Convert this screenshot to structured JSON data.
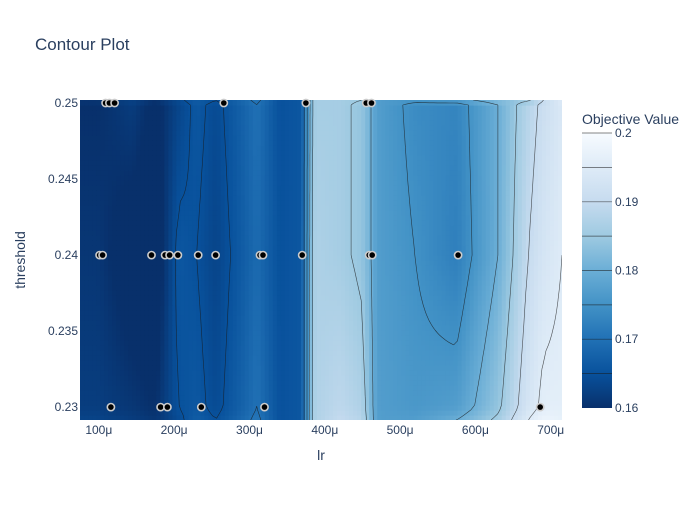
{
  "chart_data": {
    "type": "contour",
    "title": "Contour Plot",
    "xlabel": "lr",
    "ylabel": "threshold",
    "xlim": [
      7.5e-05,
      0.000715
    ],
    "ylim": [
      0.22915,
      0.2502
    ],
    "x_ticks": [
      {
        "value": 0.0001,
        "label": "100μ"
      },
      {
        "value": 0.0002,
        "label": "200μ"
      },
      {
        "value": 0.0003,
        "label": "300μ"
      },
      {
        "value": 0.0004,
        "label": "400μ"
      },
      {
        "value": 0.0005,
        "label": "500μ"
      },
      {
        "value": 0.0006,
        "label": "600μ"
      },
      {
        "value": 0.0007,
        "label": "700μ"
      }
    ],
    "y_ticks": [
      {
        "value": 0.23,
        "label": "0.23"
      },
      {
        "value": 0.235,
        "label": "0.235"
      },
      {
        "value": 0.24,
        "label": "0.24"
      },
      {
        "value": 0.245,
        "label": "0.245"
      },
      {
        "value": 0.25,
        "label": "0.25"
      }
    ],
    "colorbar": {
      "title": "Objective Value",
      "range": [
        0.16,
        0.2
      ],
      "ticks": [
        {
          "value": 0.16,
          "label": "0.16"
        },
        {
          "value": 0.17,
          "label": "0.17"
        },
        {
          "value": 0.18,
          "label": "0.18"
        },
        {
          "value": 0.19,
          "label": "0.19"
        },
        {
          "value": 0.2,
          "label": "0.2"
        }
      ],
      "contour_levels": [
        0.165,
        0.17,
        0.175,
        0.18,
        0.185,
        0.19,
        0.195,
        0.2
      ],
      "colorscale": [
        "#08306b",
        "#08519c",
        "#2171b5",
        "#4292c6",
        "#6baed6",
        "#9ecae1",
        "#c6dbef",
        "#deebf7",
        "#f7fbff"
      ]
    },
    "columns": [
      {
        "x": 0.0001,
        "values": [
          0.163,
          0.162,
          0.161,
          0.16,
          0.161
        ]
      },
      {
        "x": 0.000145,
        "values": [
          0.162,
          0.161,
          0.158,
          0.162,
          0.163
        ]
      },
      {
        "x": 0.000175,
        "values": [
          0.161,
          0.16,
          0.157,
          0.159,
          0.161
        ]
      },
      {
        "x": 0.000205,
        "values": [
          0.164,
          0.165,
          0.166,
          0.163,
          0.164
        ]
      },
      {
        "x": 0.00023,
        "values": [
          0.167,
          0.166,
          0.165,
          0.166,
          0.167
        ]
      },
      {
        "x": 0.000255,
        "values": [
          0.165,
          0.164,
          0.163,
          0.164,
          0.165
        ]
      },
      {
        "x": 0.000285,
        "values": [
          0.168,
          0.167,
          0.166,
          0.167,
          0.168
        ]
      },
      {
        "x": 0.00031,
        "values": [
          0.171,
          0.17,
          0.169,
          0.17,
          0.171
        ]
      },
      {
        "x": 0.00034,
        "values": [
          0.165,
          0.165,
          0.165,
          0.165,
          0.165
        ]
      },
      {
        "x": 0.00037,
        "values": [
          0.166,
          0.166,
          0.166,
          0.166,
          0.166
        ]
      },
      {
        "x": 0.000385,
        "values": [
          0.187,
          0.187,
          0.187,
          0.186,
          0.186
        ]
      },
      {
        "x": 0.00042,
        "values": [
          0.19,
          0.189,
          0.186,
          0.186,
          0.186
        ]
      },
      {
        "x": 0.00045,
        "values": [
          0.188,
          0.187,
          0.184,
          0.184,
          0.185
        ]
      },
      {
        "x": 0.00047,
        "values": [
          0.177,
          0.177,
          0.177,
          0.177,
          0.177
        ]
      },
      {
        "x": 0.00052,
        "values": [
          0.177,
          0.176,
          0.175,
          0.174,
          0.176
        ]
      },
      {
        "x": 0.000575,
        "values": [
          0.18,
          0.177,
          0.172,
          0.173,
          0.178
        ]
      },
      {
        "x": 0.00063,
        "values": [
          0.186,
          0.184,
          0.18,
          0.18,
          0.183
        ]
      },
      {
        "x": 0.00067,
        "values": [
          0.195,
          0.193,
          0.19,
          0.188,
          0.184
        ]
      },
      {
        "x": 0.00069,
        "values": [
          0.198,
          0.196,
          0.193,
          0.191,
          0.19
        ]
      },
      {
        "x": 0.000715,
        "values": [
          0.197,
          0.196,
          0.195,
          0.194,
          0.195
        ]
      }
    ],
    "rows": [
      0.22915,
      0.23,
      0.24,
      0.2501,
      0.2502
    ],
    "trials": [
      [
        0.000109,
        0.25
      ],
      [
        0.000114,
        0.25
      ],
      [
        0.000121,
        0.25
      ],
      [
        0.000266,
        0.25
      ],
      [
        0.000375,
        0.25
      ],
      [
        0.000455,
        0.25
      ],
      [
        0.000462,
        0.25
      ],
      [
        0.000101,
        0.24
      ],
      [
        0.000105,
        0.24
      ],
      [
        0.00017,
        0.24
      ],
      [
        0.000188,
        0.24
      ],
      [
        0.000194,
        0.24
      ],
      [
        0.000205,
        0.24
      ],
      [
        0.000232,
        0.24
      ],
      [
        0.000255,
        0.24
      ],
      [
        0.000314,
        0.24
      ],
      [
        0.000318,
        0.24
      ],
      [
        0.00037,
        0.24
      ],
      [
        0.000459,
        0.24
      ],
      [
        0.000463,
        0.24
      ],
      [
        0.000577,
        0.24
      ],
      [
        0.000116,
        0.23
      ],
      [
        0.000182,
        0.23
      ],
      [
        0.000191,
        0.23
      ],
      [
        0.000236,
        0.23
      ],
      [
        0.00032,
        0.23
      ],
      [
        0.000686,
        0.23
      ]
    ]
  }
}
